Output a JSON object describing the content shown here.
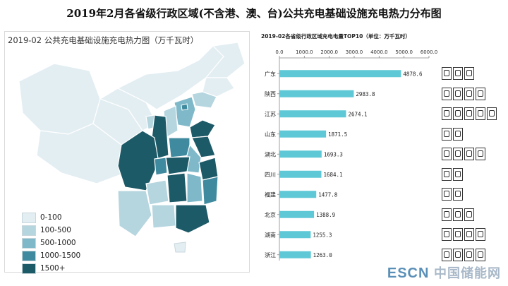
{
  "main_title": "2019年2月各省级行政区域(不含港、澳、台)公共充电基础设施充电热力分布图",
  "map": {
    "title": "2019-02 公共充电基础设施充电热力图（万千瓦时）",
    "legend": [
      {
        "label": "0-100",
        "color": "#e3eef3"
      },
      {
        "label": "100-500",
        "color": "#b5d5df"
      },
      {
        "label": "500-1000",
        "color": "#7fb9c9"
      },
      {
        "label": "1000-1500",
        "color": "#3f8a9e"
      },
      {
        "label": "1500+",
        "color": "#1d5a67"
      }
    ]
  },
  "chart_data": {
    "type": "bar",
    "orientation": "horizontal",
    "title": "2019-02各省级行政区域充电电量TOP10（单位：万千瓦时）",
    "categories": [
      "广东",
      "陕西",
      "江苏",
      "山东",
      "湖北",
      "四川",
      "福建",
      "北京",
      "湖南",
      "浙江"
    ],
    "values": [
      4878.6,
      2983.8,
      2674.1,
      1871.5,
      1693.3,
      1684.1,
      1477.8,
      1388.9,
      1255.3,
      1263.0
    ],
    "value_labels": [
      "4878.6",
      "2983.8",
      "2674.1",
      "1871.5",
      "1693.3",
      "1684.1",
      "1477.8",
      "1388.9",
      "1255.3",
      "1263.0"
    ],
    "xlim": [
      0,
      6000
    ],
    "ticks": [
      "0.0",
      "1000.0",
      "2000.0",
      "3000.0",
      "4000.0",
      "5000.0",
      "6000.0"
    ],
    "bar_color": "#5fc8d6",
    "axis_position": "top",
    "icon_counts": [
      3,
      4,
      5,
      2,
      4,
      2,
      2,
      3,
      4,
      4
    ]
  },
  "watermark": {
    "esc": "ESCN",
    "cn": "中国储能网"
  }
}
